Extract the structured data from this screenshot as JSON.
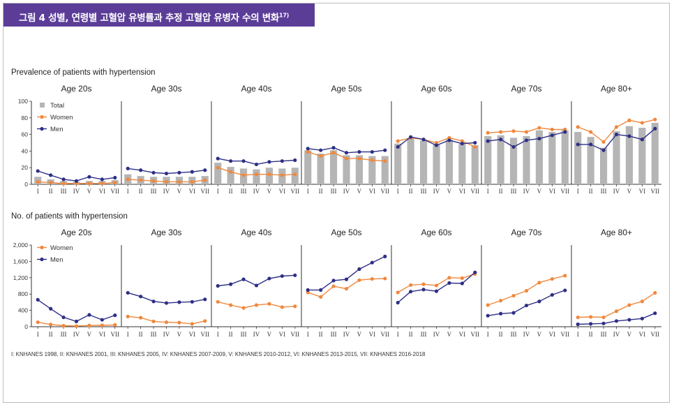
{
  "header": {
    "title": "그림 4  성별, 연령별 고혈압 유병률과 추정 고혈압 유병자 수의 변화",
    "title_sup": "17)"
  },
  "footnote": "I: KNHANES 1998, II: KNHANES 2001, III: KNHANES 2005, IV: KNHANES 2007-2009, V: KNHANES 2010-2012, VI:  KNHANES 2013-2015, VII:  KNHANES 2016-2018",
  "colors": {
    "women": "#f0883c",
    "men": "#2e2f86",
    "total": "#b5b5b5",
    "axis": "#333333"
  },
  "chart_data": [
    {
      "type": "bar+line",
      "title": "Prevalence of patients with hypertension",
      "categories": [
        "I",
        "II",
        "III",
        "IV",
        "V",
        "VI",
        "VII"
      ],
      "legend": [
        "Total",
        "Women",
        "Men"
      ],
      "legend_placement": "top-left",
      "ylim": [
        0,
        100
      ],
      "yticks": [
        "0",
        "20",
        "40",
        "60",
        "80",
        "100"
      ],
      "ytick_values": [
        0,
        20,
        40,
        60,
        80,
        100
      ],
      "panels": [
        {
          "name": "Age 20s",
          "total": [
            9,
            6,
            4,
            3,
            4,
            4,
            5
          ],
          "women": [
            3,
            2,
            1,
            1,
            1,
            1,
            2
          ],
          "men": [
            16,
            11,
            6,
            4,
            9,
            6,
            8
          ]
        },
        {
          "name": "Age 30s",
          "total": [
            12,
            10,
            9,
            9,
            9,
            9,
            10
          ],
          "women": [
            6,
            5,
            4,
            3,
            3,
            3,
            5
          ],
          "men": [
            19,
            17,
            14,
            13,
            14,
            15,
            17
          ]
        },
        {
          "name": "Age 40s",
          "total": [
            26,
            21,
            19,
            18,
            20,
            19,
            20
          ],
          "women": [
            20,
            15,
            11,
            12,
            12,
            11,
            12
          ],
          "men": [
            31,
            28,
            28,
            24,
            27,
            28,
            29
          ]
        },
        {
          "name": "Age 50s",
          "total": [
            41,
            37,
            41,
            35,
            35,
            34,
            34
          ],
          "women": [
            39,
            34,
            38,
            31,
            31,
            29,
            28
          ],
          "men": [
            43,
            41,
            44,
            38,
            39,
            39,
            41
          ]
        },
        {
          "name": "Age 60s",
          "total": [
            49,
            56,
            53,
            48,
            54,
            49,
            47
          ],
          "women": [
            52,
            56,
            54,
            50,
            56,
            52,
            45
          ],
          "men": [
            45,
            57,
            54,
            47,
            53,
            49,
            50
          ]
        },
        {
          "name": "Age 70s",
          "total": [
            58,
            59,
            56,
            58,
            65,
            63,
            65
          ],
          "women": [
            62,
            63,
            64,
            63,
            68,
            66,
            66
          ],
          "men": [
            52,
            54,
            45,
            53,
            55,
            59,
            63
          ]
        },
        {
          "name": "Age 80+",
          "total": [
            63,
            57,
            44,
            64,
            70,
            68,
            74
          ],
          "women": [
            69,
            63,
            51,
            69,
            77,
            74,
            78
          ],
          "men": [
            48,
            48,
            41,
            60,
            58,
            54,
            67
          ]
        }
      ]
    },
    {
      "type": "line",
      "title": "No. of patients with hypertension",
      "categories": [
        "I",
        "II",
        "III",
        "IV",
        "V",
        "VI",
        "VII"
      ],
      "legend": [
        "Women",
        "Men"
      ],
      "legend_placement": "top-left",
      "ylim": [
        0,
        2000
      ],
      "yticks": [
        "0",
        "400",
        "800",
        "1,200",
        "1,600",
        "2,000"
      ],
      "ytick_values": [
        0,
        400,
        800,
        1200,
        1600,
        2000
      ],
      "panels": [
        {
          "name": "Age 20s",
          "women": [
            110,
            55,
            25,
            15,
            30,
            35,
            45
          ],
          "men": [
            660,
            440,
            230,
            130,
            290,
            170,
            280
          ]
        },
        {
          "name": "Age 30s",
          "women": [
            250,
            220,
            130,
            110,
            100,
            70,
            140
          ],
          "men": [
            830,
            740,
            620,
            580,
            600,
            610,
            670
          ]
        },
        {
          "name": "Age 40s",
          "women": [
            610,
            530,
            460,
            530,
            560,
            480,
            500
          ],
          "men": [
            1000,
            1040,
            1160,
            1010,
            1180,
            1240,
            1260
          ]
        },
        {
          "name": "Age 50s",
          "women": [
            840,
            730,
            990,
            930,
            1140,
            1170,
            1180
          ],
          "men": [
            900,
            900,
            1130,
            1160,
            1410,
            1570,
            1720
          ]
        },
        {
          "name": "Age 60s",
          "women": [
            840,
            1020,
            1040,
            1010,
            1200,
            1190,
            1290
          ],
          "men": [
            590,
            860,
            910,
            870,
            1070,
            1060,
            1330
          ]
        },
        {
          "name": "Age 70s",
          "women": [
            530,
            640,
            760,
            880,
            1080,
            1170,
            1250
          ],
          "men": [
            270,
            320,
            340,
            520,
            620,
            780,
            890
          ]
        },
        {
          "name": "Age 80+",
          "women": [
            230,
            240,
            230,
            380,
            530,
            620,
            830
          ],
          "men": [
            60,
            70,
            80,
            140,
            170,
            200,
            330
          ]
        }
      ]
    }
  ]
}
